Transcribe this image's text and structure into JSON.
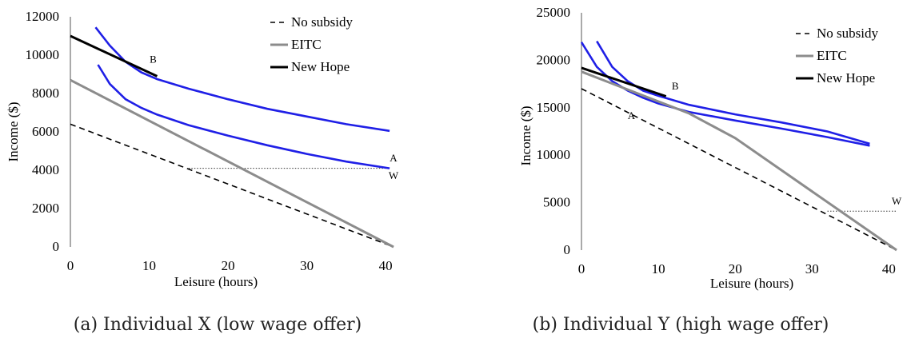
{
  "colors": {
    "indifference": "#1f1fe6",
    "eitc": "#8c8c8c",
    "new_hope": "#000000",
    "no_subsidy": "#000000",
    "dotted": "#333333"
  },
  "chart_data": [
    {
      "type": "line",
      "caption": "(a) Individual X (low wage offer)",
      "xlabel": "Leisure (hours)",
      "ylabel": "Income ($)",
      "xlim": [
        0,
        41
      ],
      "ylim": [
        0,
        12000
      ],
      "xticks": [
        0,
        10,
        20,
        30,
        40
      ],
      "yticks": [
        0,
        2000,
        4000,
        6000,
        8000,
        10000,
        12000
      ],
      "legend_position": "top-right",
      "series": [
        {
          "name": "No subsidy",
          "style": "dashed",
          "color": "#000000",
          "x": [
            0,
            41
          ],
          "y": [
            6400,
            0
          ]
        },
        {
          "name": "EITC",
          "style": "solid",
          "color": "#8c8c8c",
          "x": [
            0,
            41
          ],
          "y": [
            8700,
            0
          ]
        },
        {
          "name": "New Hope",
          "style": "solid",
          "color": "#000000",
          "x": [
            0,
            11
          ],
          "y": [
            11000,
            8900
          ]
        }
      ],
      "curves": [
        {
          "x": [
            3.2,
            5,
            7,
            9,
            11,
            15,
            20,
            25,
            30,
            35,
            40.5
          ],
          "y": [
            11450,
            10500,
            9650,
            9100,
            8750,
            8250,
            7700,
            7200,
            6800,
            6400,
            6050
          ]
        },
        {
          "x": [
            3.5,
            5,
            7,
            9,
            11,
            15,
            20,
            25,
            30,
            35,
            40.5
          ],
          "y": [
            9500,
            8500,
            7700,
            7250,
            6900,
            6350,
            5800,
            5300,
            4850,
            4450,
            4100
          ]
        }
      ],
      "dotted_line": {
        "x": [
          15,
          40.5
        ],
        "y": [
          4100,
          4100
        ]
      },
      "point_labels": [
        {
          "text": "B",
          "x": 10.5,
          "y": 9600
        },
        {
          "text": "A",
          "x": 41,
          "y": 4450
        },
        {
          "text": "W",
          "x": 41,
          "y": 3550
        }
      ]
    },
    {
      "type": "line",
      "caption": "(b) Individual Y (high wage offer)",
      "xlabel": "Leisure (hours)",
      "ylabel": "Income ($)",
      "xlim": [
        0,
        41
      ],
      "ylim": [
        0,
        25000
      ],
      "xticks": [
        0,
        10,
        20,
        30,
        40
      ],
      "yticks": [
        0,
        5000,
        10000,
        15000,
        20000,
        25000
      ],
      "legend_position": "top-right",
      "series": [
        {
          "name": "No subsidy",
          "style": "dashed",
          "color": "#000000",
          "x": [
            0,
            41
          ],
          "y": [
            17000,
            0
          ]
        },
        {
          "name": "EITC",
          "style": "solid",
          "color": "#8c8c8c",
          "x": [
            0,
            14,
            20,
            41
          ],
          "y": [
            18800,
            14400,
            11800,
            0
          ]
        },
        {
          "name": "New Hope",
          "style": "solid",
          "color": "#000000",
          "x": [
            0,
            11
          ],
          "y": [
            19200,
            16200
          ]
        }
      ],
      "curves": [
        {
          "x": [
            0,
            2,
            4,
            6,
            8,
            10,
            14,
            20,
            26,
            32,
            37.5
          ],
          "y": [
            21900,
            19300,
            17800,
            16800,
            16050,
            15450,
            14550,
            13650,
            12800,
            11900,
            11000
          ]
        },
        {
          "x": [
            2,
            4,
            6,
            8,
            10,
            14,
            20,
            26,
            32,
            37.5
          ],
          "y": [
            22000,
            19300,
            17800,
            16800,
            16250,
            15300,
            14300,
            13450,
            12500,
            11200
          ]
        }
      ],
      "dotted_line": {
        "x": [
          32,
          41
        ],
        "y": [
          4100,
          4100
        ]
      },
      "point_labels": [
        {
          "text": "B",
          "x": 12.2,
          "y": 16900
        },
        {
          "text": "A",
          "x": 6.5,
          "y": 13800
        },
        {
          "text": "W",
          "x": 41,
          "y": 4800
        }
      ]
    }
  ]
}
